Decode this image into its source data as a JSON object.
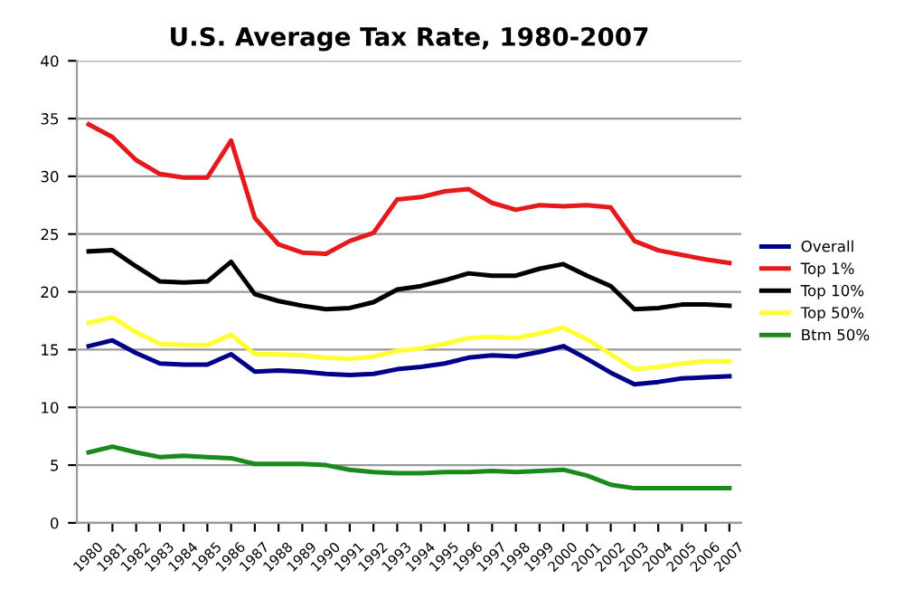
{
  "chart_data": {
    "type": "line",
    "title": "U.S. Average Tax Rate, 1980-2007",
    "categories": [
      "1980",
      "1981",
      "1982",
      "1983",
      "1984",
      "1985",
      "1986",
      "1987",
      "1988",
      "1989",
      "1990",
      "1991",
      "1992",
      "1993",
      "1994",
      "1995",
      "1996",
      "1997",
      "1998",
      "1999",
      "2000",
      "2001",
      "2002",
      "2003",
      "2004",
      "2005",
      "2006",
      "2007"
    ],
    "series": [
      {
        "name": "Overall",
        "color": "#00008b",
        "values": [
          15.3,
          15.8,
          14.7,
          13.8,
          13.7,
          13.7,
          14.6,
          13.1,
          13.2,
          13.1,
          12.9,
          12.8,
          12.9,
          13.3,
          13.5,
          13.8,
          14.3,
          14.5,
          14.4,
          14.8,
          15.3,
          14.2,
          13.0,
          12.0,
          12.2,
          12.5,
          12.6,
          12.7
        ]
      },
      {
        "name": "Top 1%",
        "color": "#e41a1c",
        "values": [
          34.5,
          33.4,
          31.4,
          30.2,
          29.9,
          29.9,
          33.1,
          26.4,
          24.1,
          23.4,
          23.3,
          24.4,
          25.1,
          28.0,
          28.2,
          28.7,
          28.9,
          27.7,
          27.1,
          27.5,
          27.4,
          27.5,
          27.3,
          24.4,
          23.6,
          23.2,
          22.8,
          22.5
        ]
      },
      {
        "name": "Top 10%",
        "color": "#000000",
        "values": [
          23.5,
          23.6,
          22.2,
          20.9,
          20.8,
          20.9,
          22.6,
          19.8,
          19.2,
          18.8,
          18.5,
          18.6,
          19.1,
          20.2,
          20.5,
          21.0,
          21.6,
          21.4,
          21.4,
          22.0,
          22.4,
          21.4,
          20.5,
          18.5,
          18.6,
          18.9,
          18.9,
          18.8
        ]
      },
      {
        "name": "Top 50%",
        "color": "#ffff33",
        "values": [
          17.3,
          17.8,
          16.5,
          15.5,
          15.4,
          15.4,
          16.3,
          14.6,
          14.6,
          14.5,
          14.3,
          14.2,
          14.4,
          14.9,
          15.1,
          15.5,
          16.0,
          16.1,
          16.0,
          16.4,
          16.9,
          15.9,
          14.6,
          13.3,
          13.5,
          13.8,
          14.0,
          14.0
        ]
      },
      {
        "name": "Btm 50%",
        "color": "#1a8a1a",
        "values": [
          6.1,
          6.6,
          6.1,
          5.7,
          5.8,
          5.7,
          5.6,
          5.1,
          5.1,
          5.1,
          5.0,
          4.6,
          4.4,
          4.3,
          4.3,
          4.4,
          4.4,
          4.5,
          4.4,
          4.5,
          4.6,
          4.1,
          3.3,
          3.0,
          3.0,
          3.0,
          3.0,
          3.0
        ]
      }
    ],
    "ylim": [
      0,
      40
    ],
    "yticks": [
      0,
      5,
      10,
      15,
      20,
      25,
      30,
      35,
      40
    ],
    "grid": "y",
    "legend": "right",
    "marker": "none",
    "line_style": "solid"
  }
}
